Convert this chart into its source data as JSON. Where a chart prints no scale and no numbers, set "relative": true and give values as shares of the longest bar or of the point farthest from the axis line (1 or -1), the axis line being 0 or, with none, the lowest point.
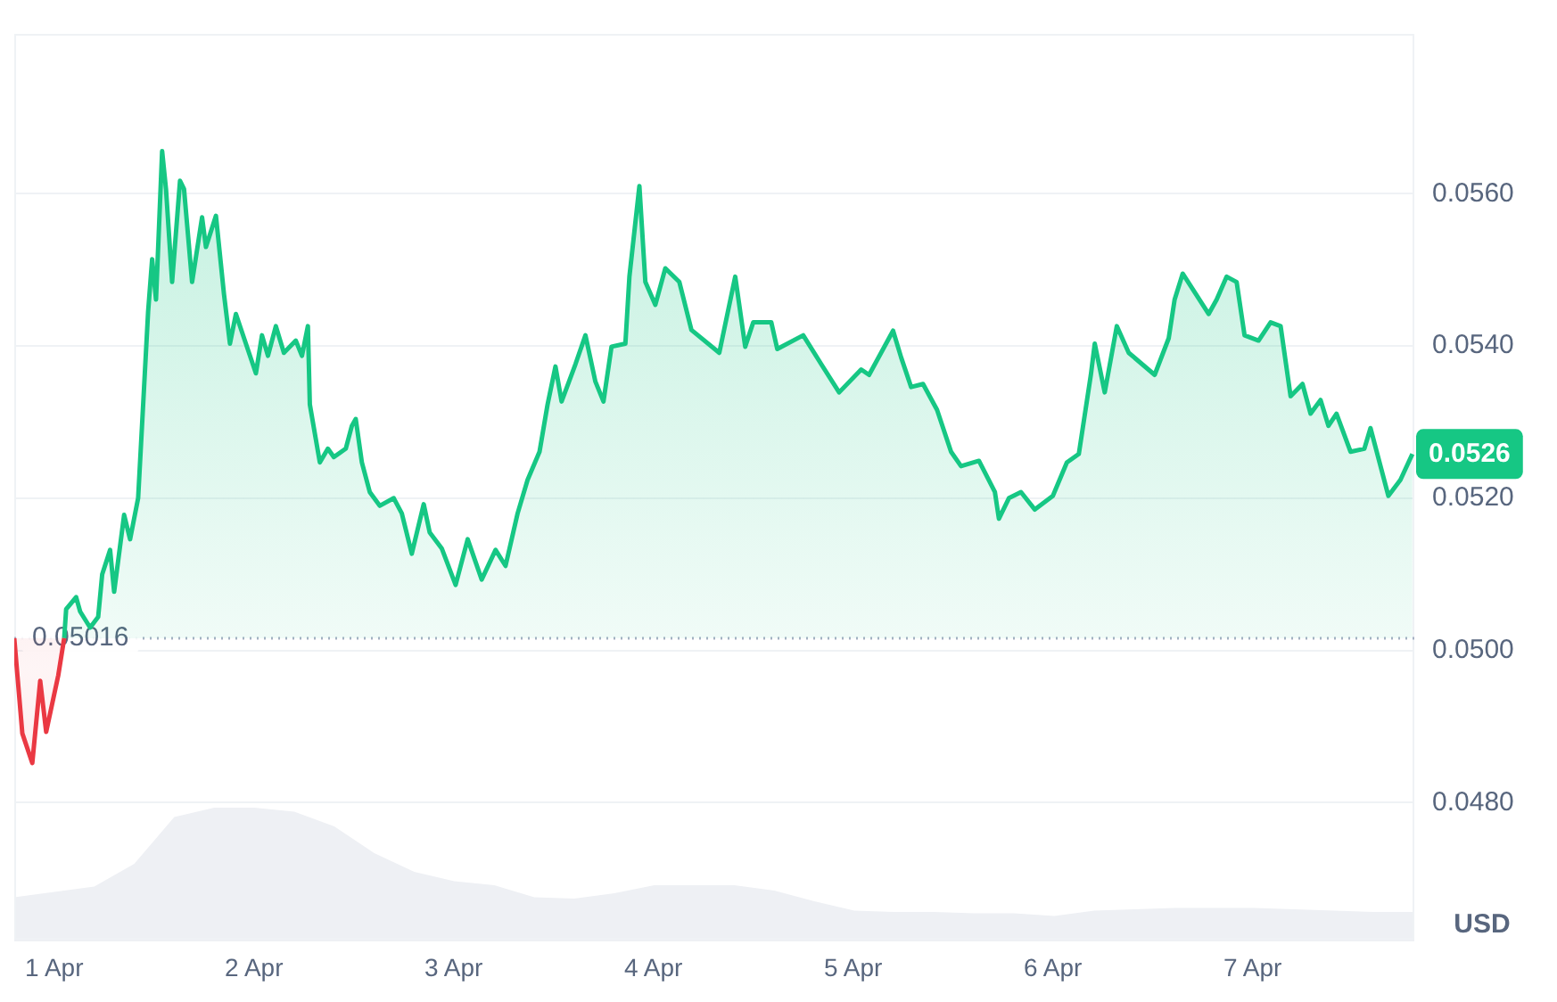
{
  "chart_data": [
    {
      "type": "area",
      "ylabel": "USD",
      "xlim": [
        "--03-31T19:12",
        "--04-07T19:26"
      ],
      "xticks": [
        {
          "value": "--04-01",
          "label": "1 Apr"
        },
        {
          "value": "--04-02",
          "label": "2 Apr"
        },
        {
          "value": "--04-03",
          "label": "3 Apr"
        },
        {
          "value": "--04-04",
          "label": "4 Apr"
        },
        {
          "value": "--04-05",
          "label": "5 Apr"
        },
        {
          "value": "--04-06",
          "label": "6 Apr"
        },
        {
          "value": "--04-07",
          "label": "7 Apr"
        }
      ],
      "ylim": [
        0.0462,
        0.0581
      ],
      "yticks": [
        {
          "value": 0.048,
          "label": "0.0480"
        },
        {
          "value": 0.05,
          "label": "0.0500"
        },
        {
          "value": 0.052,
          "label": "0.0520"
        },
        {
          "value": 0.054,
          "label": "0.0540"
        },
        {
          "value": 0.056,
          "label": "0.0560"
        }
      ],
      "grid": "y",
      "legend": false,
      "marker": "none",
      "line_style": "solid",
      "ref_lines": [
        {
          "axis": "y",
          "value": 0.05016,
          "label": "0.05016",
          "color": "#a6b0c3",
          "line_style": "dotted"
        }
      ],
      "annotations": [
        "0.0526"
      ],
      "series": [
        {
          "color": "#ea3943",
          "x": [
            "--03-31T19:12",
            "--03-31T20:10",
            "--03-31T21:22",
            "--03-31T22:19",
            "--03-31T23:02",
            "--04-01T00:29",
            "--04-01T01:12"
          ],
          "values": [
            0.05016,
            0.04891,
            0.04852,
            0.0496,
            0.04893,
            0.04967,
            0.05016
          ]
        },
        {
          "color": "#16c784",
          "x": [
            "--04-01T01:12",
            "--04-01T01:26",
            "--04-01T02:38",
            "--04-01T03:07",
            "--04-01T04:19",
            "--04-01T05:17",
            "--04-01T05:46",
            "--04-01T06:43",
            "--04-01T07:12",
            "--04-01T08:24",
            "--04-01T09:07",
            "--04-01T10:05",
            "--04-01T10:48",
            "--04-01T11:17",
            "--04-01T11:46",
            "--04-01T12:14",
            "--04-01T12:58",
            "--04-01T13:26",
            "--04-01T14:10",
            "--04-01T15:07",
            "--04-01T15:36",
            "--04-01T16:34",
            "--04-01T17:46",
            "--04-01T18:14",
            "--04-01T19:26",
            "--04-01T20:24",
            "--04-01T21:07",
            "--04-01T21:50",
            "--04-02T00:14",
            "--04-02T00:58",
            "--04-02T01:41",
            "--04-02T02:38",
            "--04-02T03:36",
            "--04-02T05:02",
            "--04-02T05:46",
            "--04-02T06:29",
            "--04-02T06:43",
            "--04-02T07:55",
            "--04-02T08:53",
            "--04-02T09:36",
            "--04-02T11:02",
            "--04-02T11:46",
            "--04-02T12:14",
            "--04-02T12:58",
            "--04-02T13:55",
            "--04-02T15:07",
            "--04-02T16:48",
            "--04-02T17:46",
            "--04-02T18:58",
            "--04-02T20:24",
            "--04-02T21:07",
            "--04-02T22:34",
            "--04-03T00:14",
            "--04-03T01:41",
            "--04-03T03:22",
            "--04-03T05:02",
            "--04-03T06:14",
            "--04-03T07:41",
            "--04-03T08:53",
            "--04-03T10:19",
            "--04-03T11:17",
            "--04-03T12:14",
            "--04-03T12:58",
            "--04-03T14:38",
            "--04-03T15:50",
            "--04-03T17:02",
            "--04-03T18:00",
            "--04-03T18:58",
            "--04-03T20:38",
            "--04-03T21:07",
            "--04-03T22:19",
            "--04-03T23:02",
            "--04-04T00:14",
            "--04-04T01:26",
            "--04-04T03:07",
            "--04-04T04:34",
            "--04-04T07:55",
            "--04-04T09:50",
            "--04-04T11:02",
            "--04-04T12:00",
            "--04-04T14:10",
            "--04-04T14:53",
            "--04-04T18:00",
            "--04-04T20:10",
            "--04-04T22:19",
            "--04-05T00:58",
            "--04-05T01:55",
            "--04-05T04:48",
            "--04-05T05:46",
            "--04-05T06:58",
            "--04-05T08:24",
            "--04-05T10:05",
            "--04-05T11:46",
            "--04-05T12:58",
            "--04-05T15:07",
            "--04-05T17:02",
            "--04-05T17:31",
            "--04-05T18:43",
            "--04-05T20:10",
            "--04-05T21:50",
            "--04-06T00:00",
            "--04-06T01:41",
            "--04-06T03:07",
            "--04-06T04:34",
            "--04-06T05:02",
            "--04-06T06:14",
            "--04-06T07:41",
            "--04-06T09:07",
            "--04-06T12:14",
            "--04-06T13:55",
            "--04-06T14:38",
            "--04-06T15:36",
            "--04-06T18:43",
            "--04-06T19:41",
            "--04-06T20:53",
            "--04-06T22:05",
            "--04-06T23:02",
            "--04-07T00:43",
            "--04-07T02:10",
            "--04-07T03:22",
            "--04-07T04:34",
            "--04-07T06:00",
            "--04-07T06:58",
            "--04-07T08:10",
            "--04-07T09:07",
            "--04-07T10:05",
            "--04-07T11:46",
            "--04-07T13:26",
            "--04-07T14:10",
            "--04-07T16:19",
            "--04-07T17:46",
            "--04-07T19:12"
          ],
          "values": [
            0.05016,
            0.05054,
            0.0507,
            0.05051,
            0.0503,
            0.05044,
            0.051,
            0.05132,
            0.05077,
            0.05178,
            0.05146,
            0.052,
            0.05346,
            0.05445,
            0.05514,
            0.05461,
            0.05656,
            0.05606,
            0.05484,
            0.05617,
            0.05606,
            0.05484,
            0.05569,
            0.0553,
            0.05571,
            0.05468,
            0.05403,
            0.05442,
            0.05364,
            0.05414,
            0.05387,
            0.05426,
            0.05391,
            0.05407,
            0.05387,
            0.05426,
            0.05323,
            0.05247,
            0.05265,
            0.05254,
            0.05265,
            0.05295,
            0.05304,
            0.05247,
            0.05208,
            0.0519,
            0.052,
            0.0518,
            0.05127,
            0.05192,
            0.05155,
            0.05134,
            0.05086,
            0.05146,
            0.05093,
            0.05132,
            0.05111,
            0.0518,
            0.05224,
            0.05261,
            0.05323,
            0.05373,
            0.05327,
            0.05376,
            0.05414,
            0.05353,
            0.05327,
            0.05399,
            0.05403,
            0.05491,
            0.0561,
            0.05484,
            0.05454,
            0.05502,
            0.05484,
            0.05421,
            0.05391,
            0.05491,
            0.05399,
            0.05431,
            0.05431,
            0.05396,
            0.05414,
            0.05376,
            0.05339,
            0.05369,
            0.05362,
            0.0542,
            0.05385,
            0.05346,
            0.0535,
            0.05316,
            0.05261,
            0.05242,
            0.05249,
            0.05208,
            0.05173,
            0.052,
            0.05208,
            0.05185,
            0.05203,
            0.05247,
            0.05258,
            0.05362,
            0.05403,
            0.05339,
            0.05426,
            0.05391,
            0.05362,
            0.0541,
            0.05461,
            0.05495,
            0.05442,
            0.05461,
            0.05491,
            0.05484,
            0.05414,
            0.05407,
            0.05431,
            0.05426,
            0.05334,
            0.0535,
            0.05311,
            0.05329,
            0.05295,
            0.05311,
            0.05261,
            0.05265,
            0.05292,
            0.05203,
            0.05224,
            0.05258
          ]
        }
      ]
    },
    {
      "type": "area",
      "relative": true,
      "legend": false,
      "marker": "none",
      "categories": [
        null,
        null,
        null,
        null,
        null,
        null,
        null,
        null,
        null,
        null,
        null,
        null,
        null,
        null,
        null,
        null,
        null,
        null,
        null,
        null,
        null,
        null,
        null,
        null,
        null,
        null,
        null,
        null,
        null,
        null,
        null,
        null,
        null,
        null,
        null,
        null
      ],
      "series": [
        {
          "color": "#eef0f4",
          "values": [
            0.33,
            0.37,
            0.41,
            0.58,
            0.93,
            1,
            1,
            0.97,
            0.86,
            0.66,
            0.52,
            0.45,
            0.42,
            0.33,
            0.32,
            0.36,
            0.42,
            0.42,
            0.42,
            0.38,
            0.3,
            0.23,
            0.22,
            0.22,
            0.21,
            0.21,
            0.19,
            0.23,
            0.24,
            0.25,
            0.25,
            0.25,
            0.24,
            0.23,
            0.22,
            0.22
          ]
        }
      ]
    }
  ]
}
